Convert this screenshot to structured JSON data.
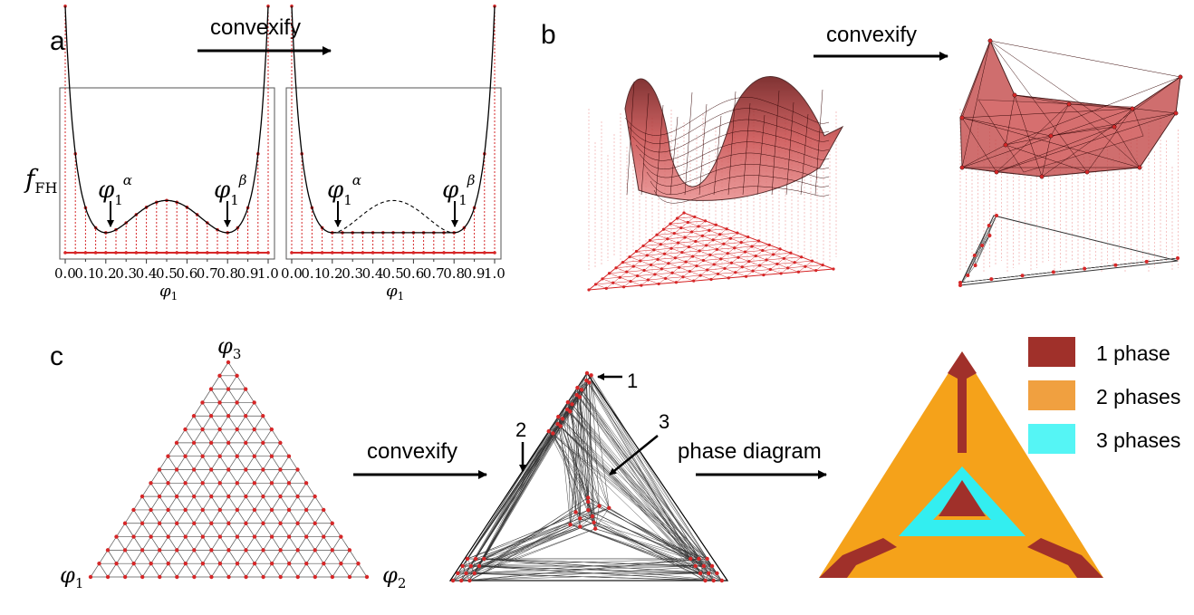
{
  "panels": {
    "a": "a",
    "b": "b",
    "c": "c"
  },
  "arrows": {
    "a_convexify": "convexify",
    "b_convexify": "convexify",
    "c_convexify": "convexify",
    "c_phase_diagram": "phase diagram"
  },
  "panel_a": {
    "ylabel_main": "f",
    "ylabel_sub": "FH",
    "xlabel_main": "φ",
    "xlabel_sub": "1",
    "xticks": [
      "0.0",
      "0.2",
      "0.4",
      "0.6",
      "0.8",
      "1.0"
    ],
    "minor_ticks": [
      "0.1",
      "0.3",
      "0.5",
      "0.7",
      "0.9"
    ],
    "phi_alpha": {
      "main": "φ",
      "sub": "1",
      "sup": "α"
    },
    "phi_beta": {
      "main": "φ",
      "sub": "1",
      "sup": "β"
    },
    "curve_color": "#000000",
    "grid_color": "#d62728"
  },
  "panel_c": {
    "vertex_top": {
      "main": "φ",
      "sub": "3"
    },
    "vertex_left": {
      "main": "φ",
      "sub": "1"
    },
    "vertex_right": {
      "main": "φ",
      "sub": "2"
    },
    "callouts": [
      "1",
      "2",
      "3"
    ]
  },
  "legend": [
    {
      "label": "1 phase",
      "color": "#a0302a"
    },
    {
      "label": "2 phases",
      "color": "#f0a040"
    },
    {
      "label": "3 phases",
      "color": "#55f5f5"
    }
  ],
  "phase_colors": {
    "one": "#a0302a",
    "two": "#f5a21a",
    "three": "#33eef0"
  }
}
